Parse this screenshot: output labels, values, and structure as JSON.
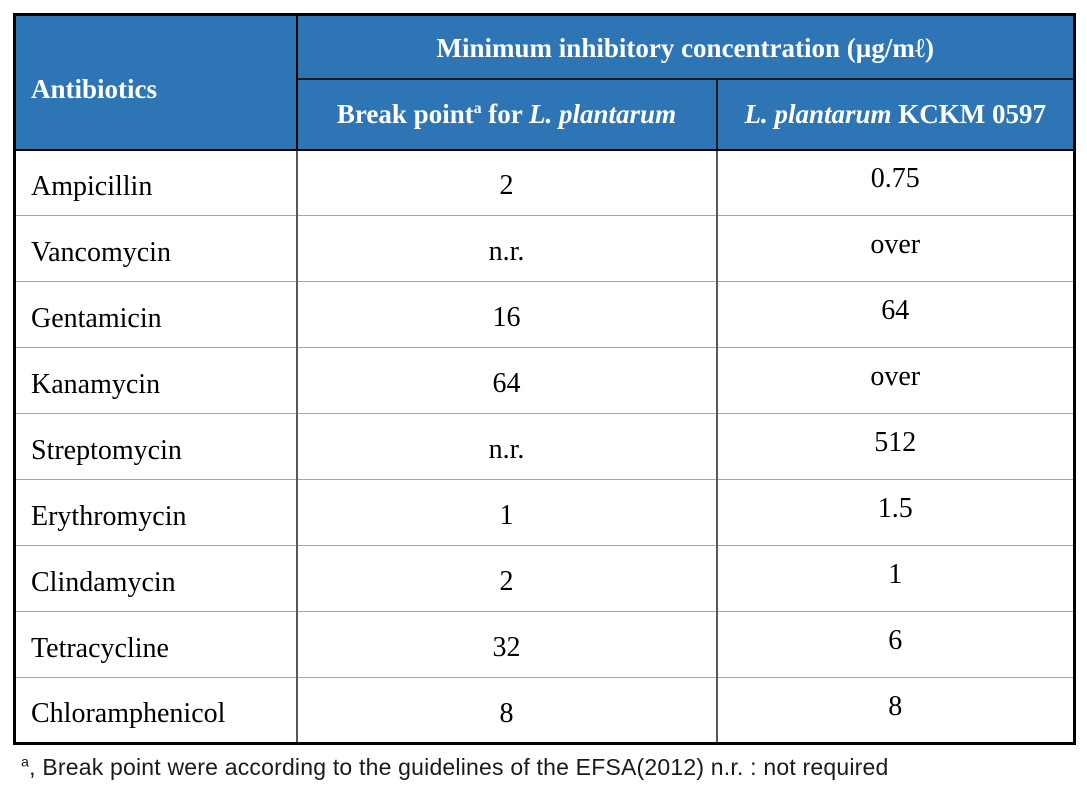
{
  "table": {
    "col_antibiotics_header": "Antibiotics",
    "mic_header": "Minimum inhibitory concentration (µg/mℓ)",
    "subheader_break_point": {
      "text_before_sup": "Break point",
      "sup": "a",
      "text_after_sup": " for ",
      "italic": "L. plantarum"
    },
    "subheader_strain": {
      "italic": "L. plantarum",
      "text": " KCKM 0597"
    },
    "rows": [
      {
        "antibiotic": "Ampicillin",
        "break_point": "2",
        "mic": "0.75"
      },
      {
        "antibiotic": "Vancomycin",
        "break_point": "n.r.",
        "mic": "over"
      },
      {
        "antibiotic": "Gentamicin",
        "break_point": "16",
        "mic": "64"
      },
      {
        "antibiotic": "Kanamycin",
        "break_point": "64",
        "mic": "over"
      },
      {
        "antibiotic": "Streptomycin",
        "break_point": "n.r.",
        "mic": "512"
      },
      {
        "antibiotic": "Erythromycin",
        "break_point": "1",
        "mic": "1.5"
      },
      {
        "antibiotic": "Clindamycin",
        "break_point": "2",
        "mic": "1"
      },
      {
        "antibiotic": "Tetracycline",
        "break_point": "32",
        "mic": "6"
      },
      {
        "antibiotic": "Chloramphenicol",
        "break_point": "8",
        "mic": "8"
      }
    ]
  },
  "footnote": {
    "sup": "a",
    "text": ", Break point were according to the guidelines of the EFSA(2012) n.r. : not required"
  },
  "colors": {
    "header_bg": "#2E75B6",
    "header_text": "#FFFFFF",
    "body_text": "#000000",
    "outer_border": "#000000",
    "row_divider": "#A6A6A6",
    "col_divider": "#595959"
  },
  "chart_data": {
    "type": "table",
    "title": "Minimum inhibitory concentration (µg/mℓ)",
    "columns": [
      "Antibiotics",
      "Break point for L. plantarum",
      "L. plantarum KCKM 0597"
    ],
    "rows": [
      [
        "Ampicillin",
        "2",
        "0.75"
      ],
      [
        "Vancomycin",
        "n.r.",
        "over"
      ],
      [
        "Gentamicin",
        "16",
        "64"
      ],
      [
        "Kanamycin",
        "64",
        "over"
      ],
      [
        "Streptomycin",
        "n.r.",
        "512"
      ],
      [
        "Erythromycin",
        "1",
        "1.5"
      ],
      [
        "Clindamycin",
        "2",
        "1"
      ],
      [
        "Tetracycline",
        "32",
        "6"
      ],
      [
        "Chloramphenicol",
        "8",
        "8"
      ]
    ],
    "footnote": "a, Break point were according to the guidelines of the EFSA(2012) n.r. : not required"
  }
}
